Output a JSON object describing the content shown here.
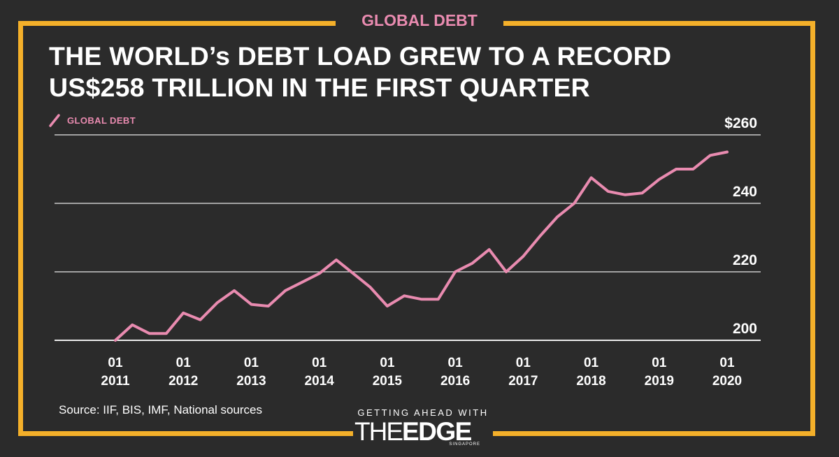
{
  "header": {
    "tag": "GLOBAL DEBT"
  },
  "title_lines": [
    "THE WORLD’s DEBT LOAD GREW TO A RECORD",
    "US$258 TRILLION IN THE FIRST QUARTER"
  ],
  "source": "Source: IIF, BIS, IMF, National sources",
  "brand": {
    "tagline": "GETTING AHEAD WITH",
    "the": "THE",
    "edge": "EDGE",
    "sub": "SINGAPORE"
  },
  "colors": {
    "background": "#2b2b2b",
    "frame": "#f4b02a",
    "series": "#e98bb0",
    "text": "#ffffff",
    "grid": "#ffffff"
  },
  "chart_data": {
    "type": "line",
    "title": "THE WORLD’s DEBT LOAD GREW TO A RECORD US$258 TRILLION IN THE FIRST QUARTER",
    "xlabel": "",
    "ylabel": "",
    "ylim": [
      198,
      260
    ],
    "yticks": [
      200,
      220,
      240,
      260
    ],
    "ytick_labels": [
      "200",
      "220",
      "240",
      "$260"
    ],
    "x_tick_labels": [
      {
        "index": 0,
        "top": "01",
        "bottom": "2011"
      },
      {
        "index": 4,
        "top": "01",
        "bottom": "2012"
      },
      {
        "index": 8,
        "top": "01",
        "bottom": "2013"
      },
      {
        "index": 12,
        "top": "01",
        "bottom": "2014"
      },
      {
        "index": 16,
        "top": "01",
        "bottom": "2015"
      },
      {
        "index": 20,
        "top": "01",
        "bottom": "2016"
      },
      {
        "index": 24,
        "top": "01",
        "bottom": "2017"
      },
      {
        "index": 28,
        "top": "01",
        "bottom": "2018"
      },
      {
        "index": 32,
        "top": "01",
        "bottom": "2019"
      },
      {
        "index": 36,
        "top": "01",
        "bottom": "2020"
      }
    ],
    "series": [
      {
        "name": "GLOBAL DEBT",
        "values": [
          200,
          204.5,
          202,
          202,
          208,
          206,
          211,
          214.5,
          210.5,
          210,
          214.5,
          217,
          219.5,
          223.5,
          219.5,
          215.5,
          210,
          213,
          212,
          212,
          220,
          222.5,
          226.5,
          220,
          224.5,
          230.5,
          236,
          240,
          247.5,
          243.5,
          242.5,
          243,
          247,
          250,
          250,
          254,
          255
        ]
      }
    ]
  }
}
